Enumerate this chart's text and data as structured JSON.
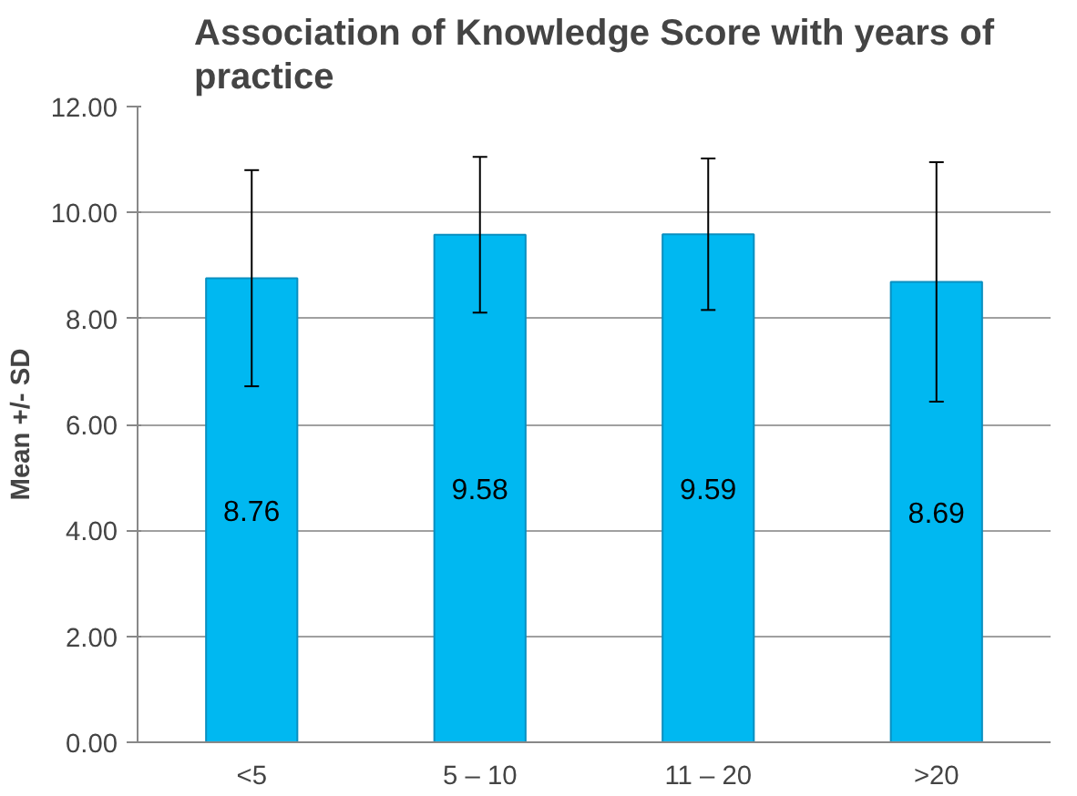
{
  "chart_data": {
    "type": "bar",
    "title": "Association of Knowledge Score with years of practice",
    "ylabel": "Mean +/- SD",
    "categories": [
      "<5",
      "5 – 10",
      "11 – 20",
      ">20"
    ],
    "values": [
      8.76,
      9.58,
      9.59,
      8.69
    ],
    "errors": [
      2.04,
      1.47,
      1.43,
      2.26
    ],
    "color": "#00b8f1",
    "data_labels": true,
    "ylim": [
      0,
      12
    ],
    "yticks": [
      {
        "value": 0,
        "label": "0.00"
      },
      {
        "value": 2,
        "label": "2.00"
      },
      {
        "value": 4,
        "label": "4.00"
      },
      {
        "value": 6,
        "label": "6.00"
      },
      {
        "value": 8,
        "label": "8.00"
      },
      {
        "value": 10,
        "label": "10.00"
      },
      {
        "value": 12,
        "label": "12.00"
      }
    ],
    "grid": "y"
  }
}
